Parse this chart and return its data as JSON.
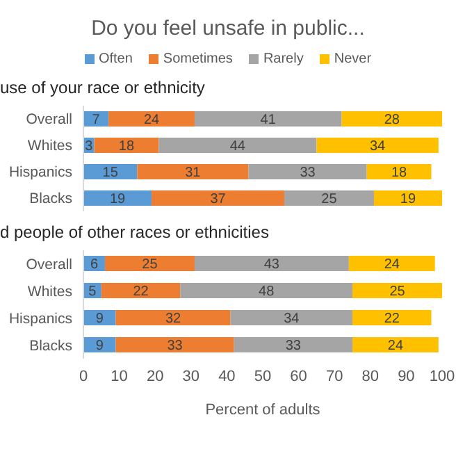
{
  "chart_data": [
    {
      "type": "bar",
      "orientation": "horizontal",
      "stacked": true,
      "title": "Do you feel unsafe in public...",
      "subtitle": "use of your race or ethnicity",
      "categories": [
        "Overall",
        "Whites",
        "Hispanics",
        "Blacks"
      ],
      "series": [
        {
          "name": "Often",
          "color": "#5b9bd5",
          "values": [
            7,
            3,
            15,
            19
          ]
        },
        {
          "name": "Sometimes",
          "color": "#ed7d31",
          "values": [
            24,
            18,
            31,
            37
          ]
        },
        {
          "name": "Rarely",
          "color": "#a5a5a5",
          "values": [
            41,
            44,
            33,
            25
          ]
        },
        {
          "name": "Never",
          "color": "#ffc000",
          "values": [
            28,
            34,
            18,
            19
          ]
        }
      ],
      "xlim": [
        0,
        100
      ],
      "xticks": [
        0,
        10,
        20,
        30,
        40,
        50,
        60,
        70,
        80,
        90,
        100
      ],
      "tick_labels": "y",
      "legend": "top",
      "data_labels": true
    },
    {
      "type": "bar",
      "orientation": "horizontal",
      "stacked": true,
      "subtitle": "d people of other races or ethnicities",
      "categories": [
        "Overall",
        "Whites",
        "Hispanics",
        "Blacks"
      ],
      "series": [
        {
          "color": "#5b9bd5",
          "values": [
            6,
            5,
            9,
            9
          ]
        },
        {
          "color": "#ed7d31",
          "values": [
            25,
            22,
            32,
            33
          ]
        },
        {
          "color": "#a5a5a5",
          "values": [
            43,
            48,
            34,
            33
          ]
        },
        {
          "color": "#ffc000",
          "values": [
            24,
            25,
            22,
            24
          ]
        }
      ],
      "xlim": [
        0,
        100
      ],
      "xticks": [
        0,
        10,
        20,
        30,
        40,
        50,
        60,
        70,
        80,
        90,
        100
      ],
      "xlabel": "Percent of adults",
      "data_labels": true
    }
  ]
}
